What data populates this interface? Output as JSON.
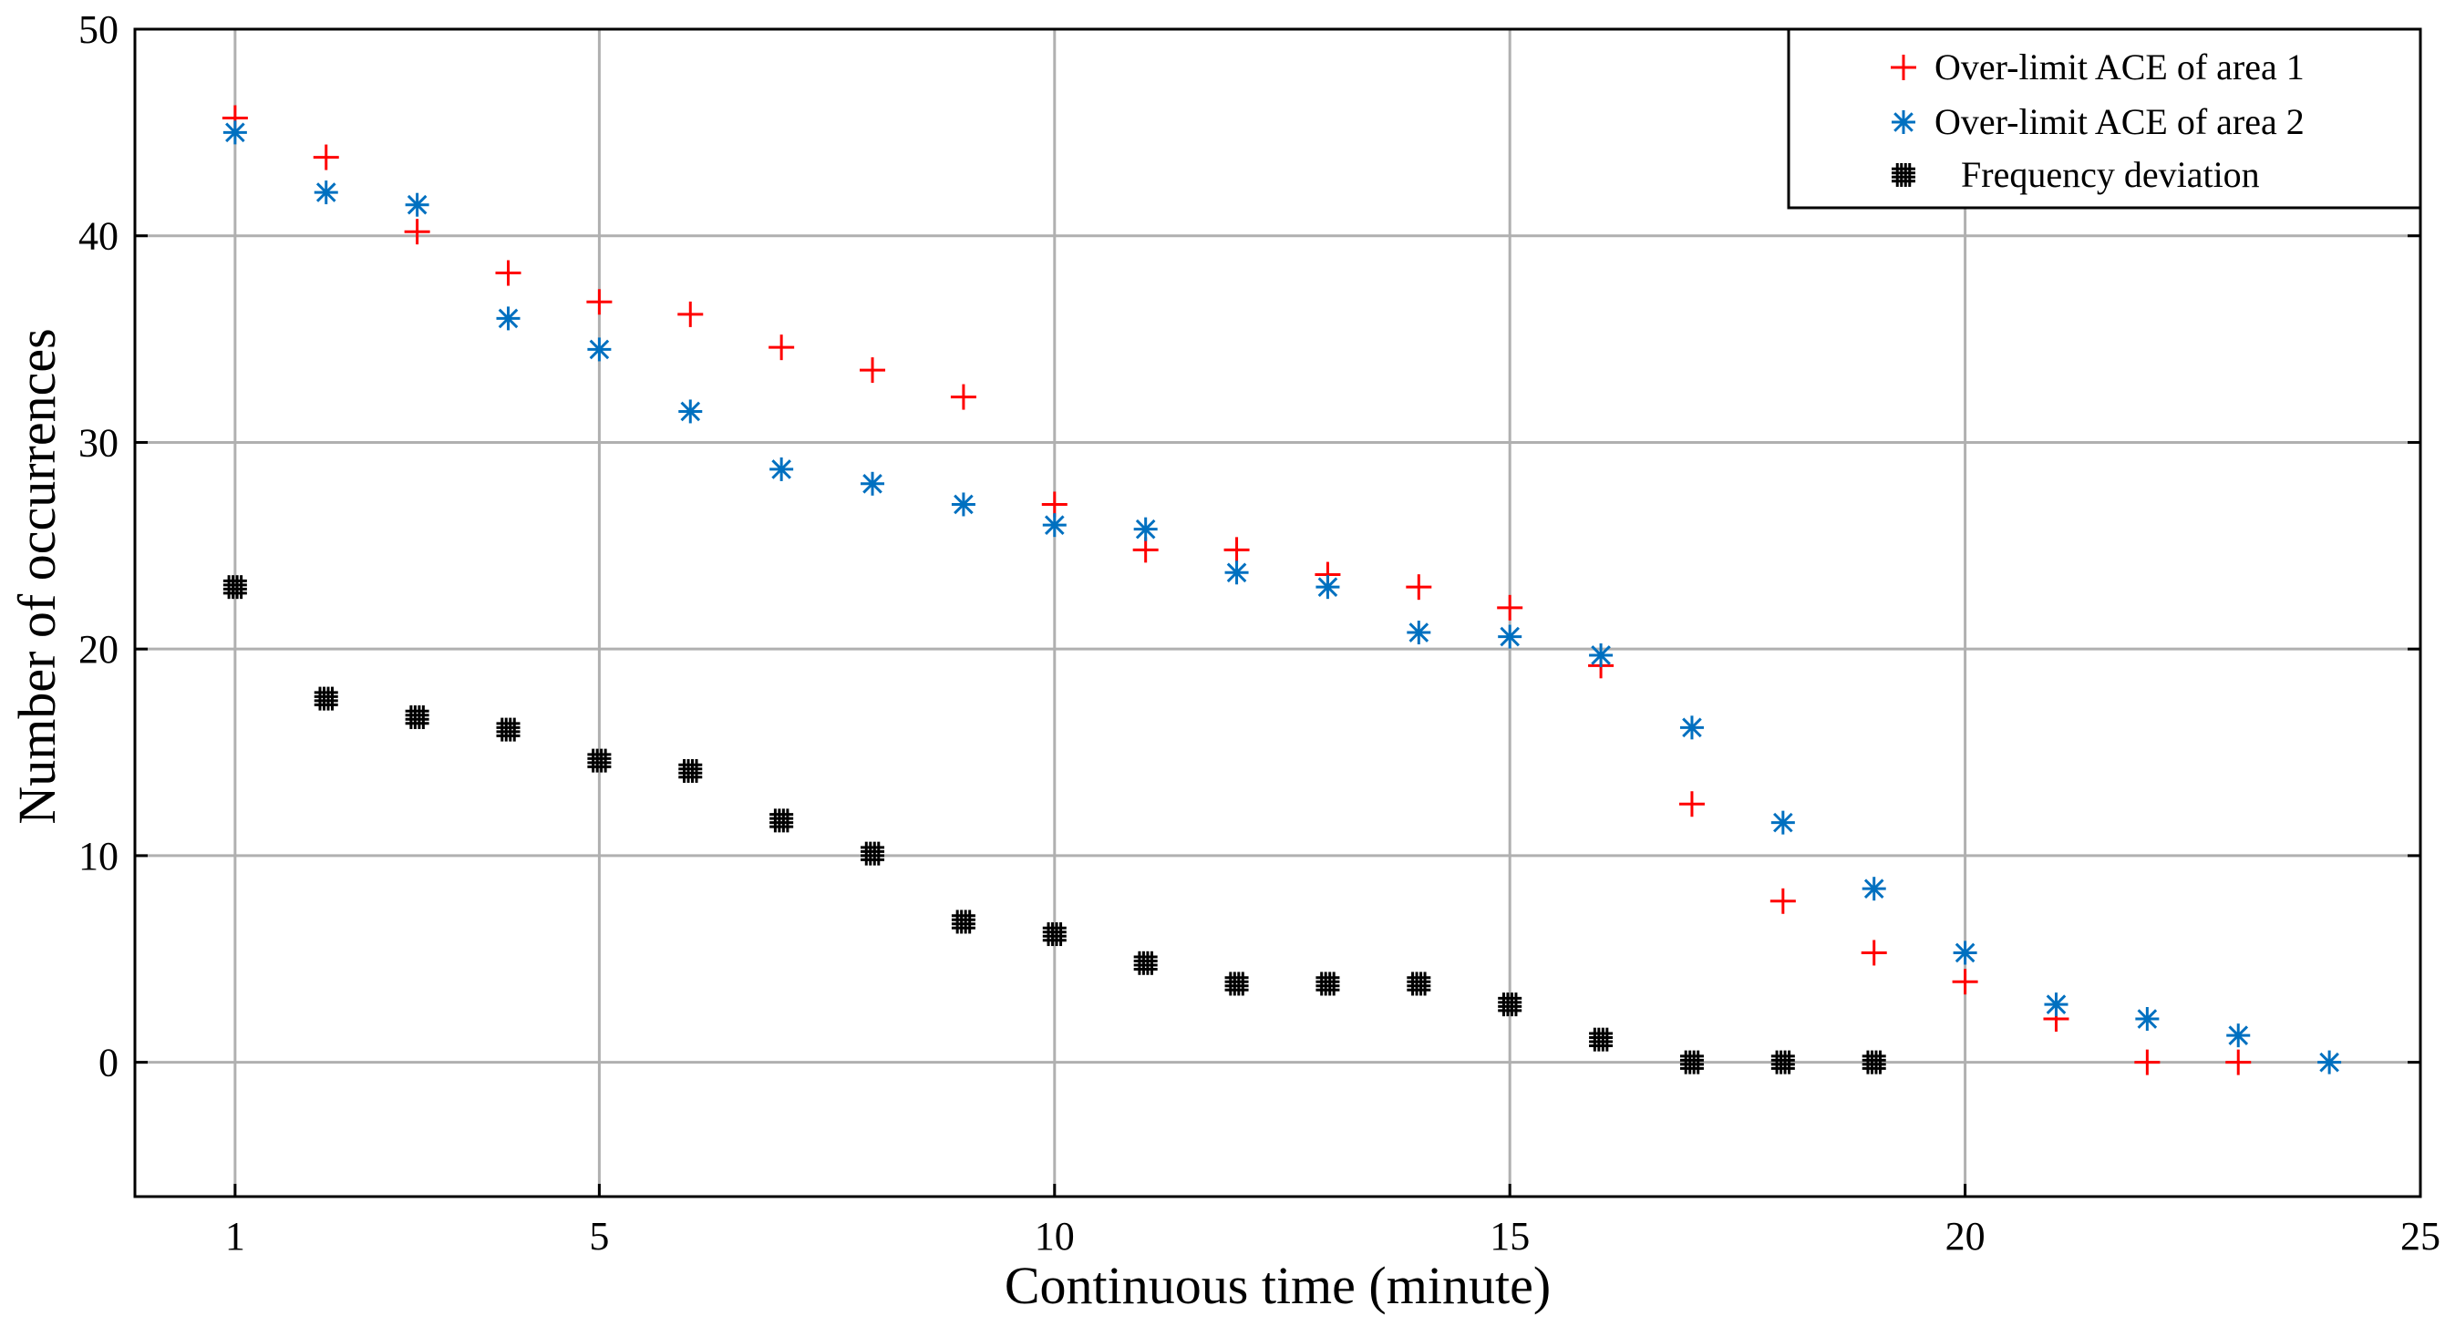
{
  "chart_data": {
    "type": "scatter",
    "title": "",
    "xlabel": "Continuous time (minute)",
    "ylabel": "Number of occurrences",
    "xlim": [
      -0.1,
      25
    ],
    "ylim": [
      -6.5,
      50
    ],
    "xticks": [
      1,
      5,
      10,
      15,
      20,
      25
    ],
    "yticks": [
      0,
      10,
      20,
      30,
      40,
      50
    ],
    "grid": true,
    "legend_position": "top-right",
    "series": [
      {
        "name": "Over-limit ACE of area 1",
        "marker": "plus",
        "color": "#ff0000",
        "x": [
          1,
          2,
          3,
          4,
          5,
          6,
          7,
          8,
          9,
          10,
          11,
          12,
          13,
          14,
          15,
          16,
          17,
          18,
          19,
          20,
          21,
          22,
          23
        ],
        "y": [
          45.7,
          43.8,
          40.2,
          38.2,
          36.8,
          36.2,
          34.6,
          33.5,
          32.2,
          27.0,
          24.8,
          24.8,
          23.6,
          23.0,
          22.0,
          19.2,
          12.5,
          7.8,
          5.3,
          3.9,
          2.1,
          0,
          0
        ]
      },
      {
        "name": "Over-limit ACE of area 2",
        "marker": "asterisk",
        "color": "#0070c0",
        "x": [
          1,
          2,
          3,
          4,
          5,
          6,
          7,
          8,
          9,
          10,
          11,
          12,
          13,
          14,
          15,
          16,
          17,
          18,
          19,
          20,
          21,
          22,
          23,
          24
        ],
        "y": [
          45.0,
          42.1,
          41.5,
          36.0,
          34.5,
          31.5,
          28.7,
          28.0,
          27.0,
          26.0,
          25.8,
          23.7,
          23.0,
          20.8,
          20.6,
          19.7,
          16.2,
          11.6,
          8.4,
          5.3,
          2.8,
          2.1,
          1.3,
          0
        ]
      },
      {
        "name": "Frequency deviation",
        "marker": "hash",
        "color": "#000000",
        "x": [
          1,
          2,
          3,
          4,
          5,
          6,
          7,
          8,
          9,
          10,
          11,
          12,
          13,
          14,
          15,
          16,
          17,
          18,
          19
        ],
        "y": [
          23.0,
          17.6,
          16.7,
          16.1,
          14.6,
          14.1,
          11.7,
          10.1,
          6.8,
          6.2,
          4.8,
          3.8,
          3.8,
          3.8,
          2.8,
          1.1,
          0,
          0,
          0
        ]
      }
    ]
  }
}
